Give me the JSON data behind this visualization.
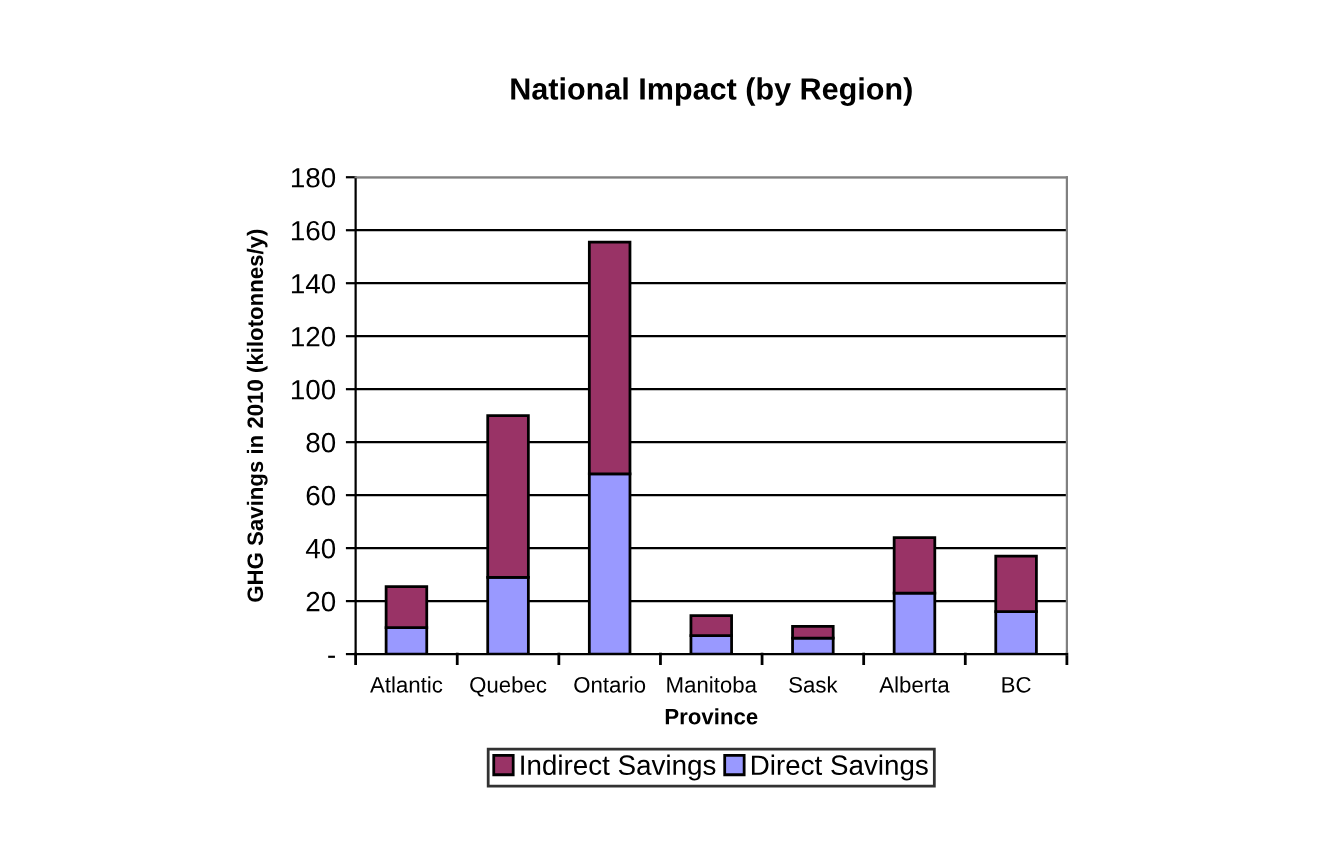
{
  "chart_data": {
    "type": "bar",
    "title": "National Impact (by Region)",
    "xlabel": "Province",
    "ylabel": "GHG Savings in 2010 (kilotonnes/y)",
    "categories": [
      "Atlantic",
      "Quebec",
      "Ontario",
      "Manitoba",
      "Sask",
      "Alberta",
      "BC"
    ],
    "stacked": true,
    "series": [
      {
        "name": "Direct Savings",
        "color": "#9999ff",
        "values": [
          10,
          29,
          68,
          7,
          6,
          23,
          16
        ]
      },
      {
        "name": "Indirect Savings",
        "color": "#993366",
        "values": [
          15.5,
          61,
          87.5,
          7.5,
          4.5,
          21,
          21
        ]
      }
    ],
    "ylim": [
      0,
      180
    ],
    "yticks": [
      {
        "value": 0,
        "label": "-"
      },
      20,
      40,
      60,
      80,
      100,
      120,
      140,
      160,
      180
    ],
    "grid": "y",
    "legend": "bottom"
  }
}
